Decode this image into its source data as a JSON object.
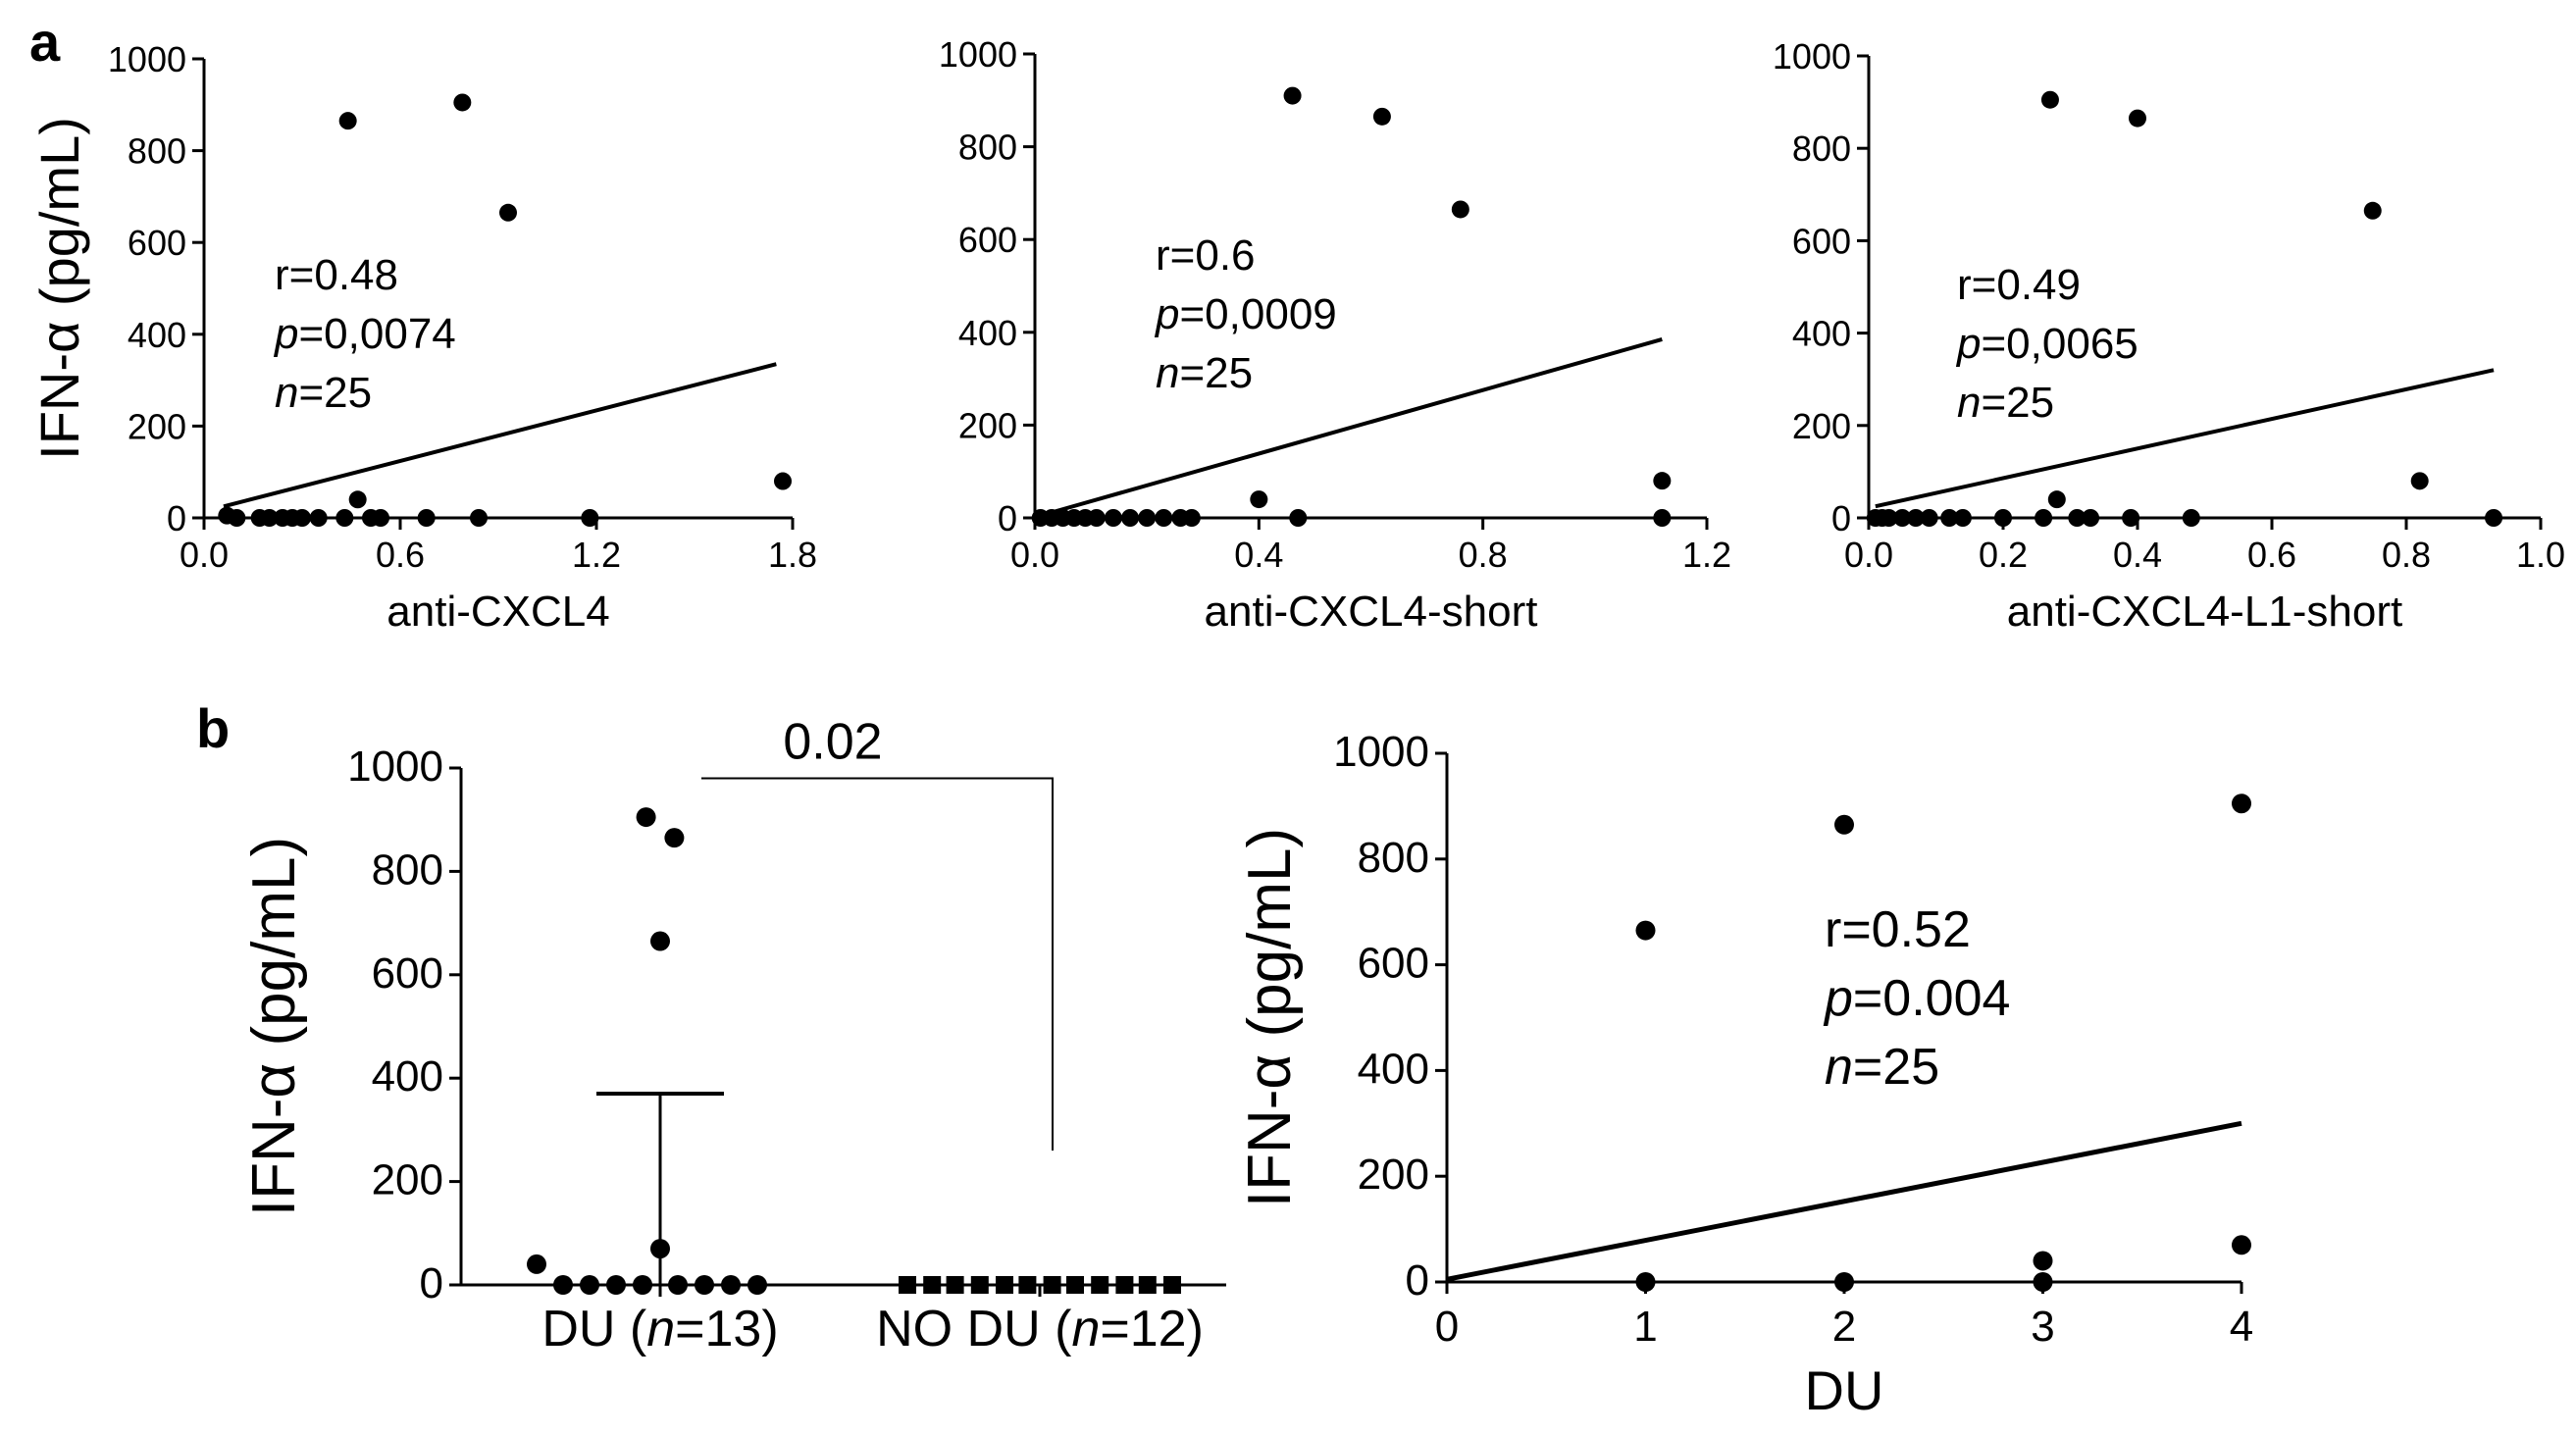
{
  "figure": {
    "panel_a_letter": "a",
    "panel_b_letter": "b"
  },
  "chart_data": [
    {
      "id": "a1",
      "type": "scatter",
      "title": "",
      "xlabel": "anti-CXCL4",
      "ylabel": "IFN-α (pg/mL)",
      "xlim": [
        0,
        1.8
      ],
      "ylim": [
        0,
        1000
      ],
      "xticks": [
        0,
        0.6,
        1.2,
        1.8
      ],
      "xtick_labels": [
        "0.0",
        "0.6",
        "1.2",
        "1.8"
      ],
      "yticks": [
        0,
        200,
        400,
        600,
        800,
        1000
      ],
      "ytick_labels": [
        "0",
        "200",
        "400",
        "600",
        "800",
        "1000"
      ],
      "points": [
        [
          0.44,
          865
        ],
        [
          0.79,
          905
        ],
        [
          0.93,
          665
        ],
        [
          1.77,
          80
        ],
        [
          0.47,
          40
        ],
        [
          0.07,
          5
        ],
        [
          0.1,
          0
        ],
        [
          0.17,
          0
        ],
        [
          0.2,
          0
        ],
        [
          0.24,
          0
        ],
        [
          0.27,
          0
        ],
        [
          0.3,
          0
        ],
        [
          0.35,
          0
        ],
        [
          0.43,
          0
        ],
        [
          0.51,
          0
        ],
        [
          0.54,
          0
        ],
        [
          0.68,
          0
        ],
        [
          0.84,
          0
        ],
        [
          1.18,
          0
        ]
      ],
      "fit_line": [
        [
          0.06,
          25
        ],
        [
          1.75,
          335
        ]
      ],
      "annotation": {
        "r": "r=0.48",
        "p_label": "p",
        "p_value": "=0,0074",
        "n_label": "n",
        "n_value": "=25"
      }
    },
    {
      "id": "a2",
      "type": "scatter",
      "title": "",
      "xlabel": "anti-CXCL4-short",
      "ylabel": "",
      "xlim": [
        0,
        1.2
      ],
      "ylim": [
        0,
        1000
      ],
      "xticks": [
        0,
        0.4,
        0.8,
        1.2
      ],
      "xtick_labels": [
        "0.0",
        "0.4",
        "0.8",
        "1.2"
      ],
      "yticks": [
        0,
        200,
        400,
        600,
        800,
        1000
      ],
      "ytick_labels": [
        "0",
        "200",
        "400",
        "600",
        "800",
        "1000"
      ],
      "points": [
        [
          0.46,
          910
        ],
        [
          0.62,
          865
        ],
        [
          0.76,
          665
        ],
        [
          1.12,
          80
        ],
        [
          0.4,
          40
        ],
        [
          0.01,
          0
        ],
        [
          0.03,
          0
        ],
        [
          0.05,
          0
        ],
        [
          0.07,
          0
        ],
        [
          0.09,
          0
        ],
        [
          0.11,
          0
        ],
        [
          0.14,
          0
        ],
        [
          0.17,
          0
        ],
        [
          0.2,
          0
        ],
        [
          0.23,
          0
        ],
        [
          0.26,
          0
        ],
        [
          0.28,
          0
        ],
        [
          0.47,
          0
        ],
        [
          1.12,
          0
        ]
      ],
      "fit_line": [
        [
          0.01,
          5
        ],
        [
          1.12,
          385
        ]
      ],
      "annotation": {
        "r": "r=0.6",
        "p_label": "p",
        "p_value": "=0,0009",
        "n_label": "n",
        "n_value": "=25"
      }
    },
    {
      "id": "a3",
      "type": "scatter",
      "title": "",
      "xlabel": "anti-CXCL4-L1-short",
      "ylabel": "",
      "xlim": [
        0,
        1.0
      ],
      "ylim": [
        0,
        1000
      ],
      "xticks": [
        0,
        0.2,
        0.4,
        0.6,
        0.8,
        1.0
      ],
      "xtick_labels": [
        "0.0",
        "0.2",
        "0.4",
        "0.6",
        "0.8",
        "1.0"
      ],
      "yticks": [
        0,
        200,
        400,
        600,
        800,
        1000
      ],
      "ytick_labels": [
        "0",
        "200",
        "400",
        "600",
        "800",
        "1000"
      ],
      "points": [
        [
          0.27,
          905
        ],
        [
          0.4,
          865
        ],
        [
          0.75,
          665
        ],
        [
          0.82,
          80
        ],
        [
          0.28,
          40
        ],
        [
          0.01,
          0
        ],
        [
          0.02,
          0
        ],
        [
          0.03,
          0
        ],
        [
          0.05,
          0
        ],
        [
          0.07,
          0
        ],
        [
          0.09,
          0
        ],
        [
          0.12,
          0
        ],
        [
          0.14,
          0
        ],
        [
          0.2,
          0
        ],
        [
          0.26,
          0
        ],
        [
          0.31,
          0
        ],
        [
          0.33,
          0
        ],
        [
          0.39,
          0
        ],
        [
          0.48,
          0
        ],
        [
          0.93,
          0
        ]
      ],
      "fit_line": [
        [
          0.01,
          25
        ],
        [
          0.93,
          320
        ]
      ],
      "annotation": {
        "r": "r=0.49",
        "p_label": "p",
        "p_value": "=0,0065",
        "n_label": "n",
        "n_value": "=25"
      }
    },
    {
      "id": "b1",
      "type": "scatter",
      "title": "",
      "xlabel": "",
      "ylabel": "IFN-α (pg/mL)",
      "ylim": [
        0,
        1000
      ],
      "yticks": [
        0,
        200,
        400,
        600,
        800,
        1000
      ],
      "ytick_labels": [
        "0",
        "200",
        "400",
        "600",
        "800",
        "1000"
      ],
      "groups": [
        {
          "label": "DU (",
          "n_label": "n",
          "n_value": "=13)",
          "points": [
            [
              -0.7,
              40
            ],
            [
              -0.55,
              0
            ],
            [
              -0.4,
              0
            ],
            [
              -0.25,
              0
            ],
            [
              -0.08,
              905
            ],
            [
              0.08,
              865
            ],
            [
              0,
              665
            ],
            [
              0,
              70
            ],
            [
              -0.1,
              0
            ],
            [
              0.1,
              0
            ],
            [
              0.25,
              0
            ],
            [
              0.4,
              0
            ],
            [
              0.55,
              0
            ]
          ],
          "bar_top": 370,
          "bar_bottom": 0,
          "bar_center": 0
        },
        {
          "label": "NO DU (",
          "n_label": "n",
          "n_value": "=12)",
          "points": [
            [
              -0.75,
              0
            ],
            [
              -0.61,
              0
            ],
            [
              -0.48,
              0
            ],
            [
              -0.34,
              0
            ],
            [
              -0.2,
              0
            ],
            [
              -0.07,
              0
            ],
            [
              0.07,
              0
            ],
            [
              0.2,
              0
            ],
            [
              0.34,
              0
            ],
            [
              0.48,
              0
            ],
            [
              0.61,
              0
            ],
            [
              0.75,
              0
            ]
          ]
        }
      ],
      "significance": "0.02",
      "bracket_levels": [
        980,
        260
      ]
    },
    {
      "id": "b2",
      "type": "scatter",
      "title": "",
      "xlabel": "DU",
      "ylabel": "IFN-α (pg/mL)",
      "xlim": [
        0,
        4
      ],
      "ylim": [
        0,
        1000
      ],
      "xticks": [
        0,
        1,
        2,
        3,
        4
      ],
      "xtick_labels": [
        "0",
        "1",
        "2",
        "3",
        "4"
      ],
      "yticks": [
        0,
        200,
        400,
        600,
        800,
        1000
      ],
      "ytick_labels": [
        "0",
        "200",
        "400",
        "600",
        "800",
        "1000"
      ],
      "points": [
        [
          1,
          665
        ],
        [
          2,
          865
        ],
        [
          4,
          905
        ],
        [
          3,
          40
        ],
        [
          4,
          70
        ],
        [
          1,
          0
        ],
        [
          2,
          0
        ],
        [
          3,
          0
        ]
      ],
      "fit_line": [
        [
          0,
          5
        ],
        [
          4,
          300
        ]
      ],
      "annotation": {
        "r": "r=0.52",
        "p_label": "p",
        "p_value": "=0.004",
        "n_label": "n",
        "n_value": "=25"
      }
    }
  ]
}
